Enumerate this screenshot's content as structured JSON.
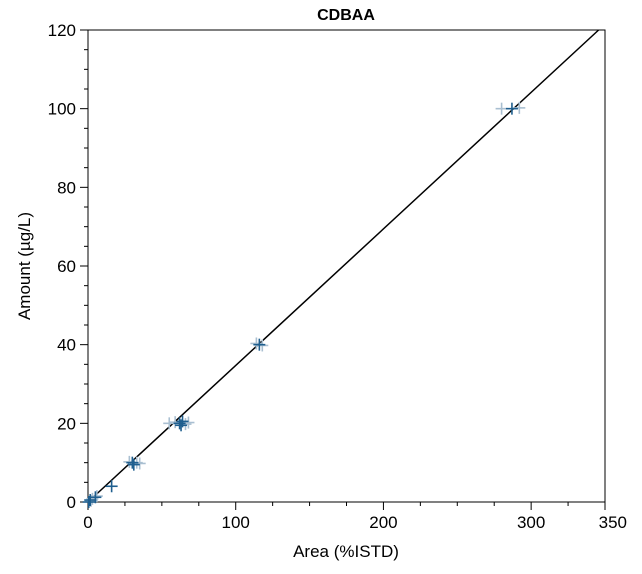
{
  "chart_data": {
    "type": "scatter",
    "title": "CDBAA",
    "xlabel": "Area (%ISTD)",
    "ylabel": "Amount (µg/L)",
    "xlim": [
      0,
      350
    ],
    "ylim": [
      0,
      120
    ],
    "x_ticks": [
      0,
      100,
      200,
      300,
      350
    ],
    "y_ticks": [
      0,
      20,
      40,
      60,
      80,
      100,
      120
    ],
    "x_minor_step": 25,
    "y_minor_step": 5,
    "grid": false,
    "colors": {
      "fit_line": "#000000",
      "point": "#1f5f8f",
      "point_faded": "#a9bfd1"
    },
    "fit_line": {
      "x": [
        0,
        350
      ],
      "y": [
        0,
        121.5
      ]
    },
    "series": [
      {
        "marker": "plus",
        "faded": false,
        "points": [
          {
            "x": 0.5,
            "y": 0
          },
          {
            "x": 1.5,
            "y": 0.5
          },
          {
            "x": 5,
            "y": 1.2
          },
          {
            "x": 16,
            "y": 4
          },
          {
            "x": 30,
            "y": 10
          },
          {
            "x": 31,
            "y": 9.5
          },
          {
            "x": 62,
            "y": 20
          },
          {
            "x": 63,
            "y": 19.5
          },
          {
            "x": 64,
            "y": 20.5
          },
          {
            "x": 116,
            "y": 40
          },
          {
            "x": 287,
            "y": 100
          }
        ]
      },
      {
        "marker": "plus",
        "faded": true,
        "points": [
          {
            "x": 2,
            "y": 0.3
          },
          {
            "x": 3,
            "y": 0.8
          },
          {
            "x": 6,
            "y": 1.5
          },
          {
            "x": 28,
            "y": 10.2
          },
          {
            "x": 33,
            "y": 10
          },
          {
            "x": 35,
            "y": 9.8
          },
          {
            "x": 55,
            "y": 20
          },
          {
            "x": 59,
            "y": 20.3
          },
          {
            "x": 66,
            "y": 19.8
          },
          {
            "x": 68,
            "y": 20.2
          },
          {
            "x": 114,
            "y": 40.3
          },
          {
            "x": 118,
            "y": 39.8
          },
          {
            "x": 280,
            "y": 100
          },
          {
            "x": 292,
            "y": 100.2
          }
        ]
      }
    ]
  }
}
